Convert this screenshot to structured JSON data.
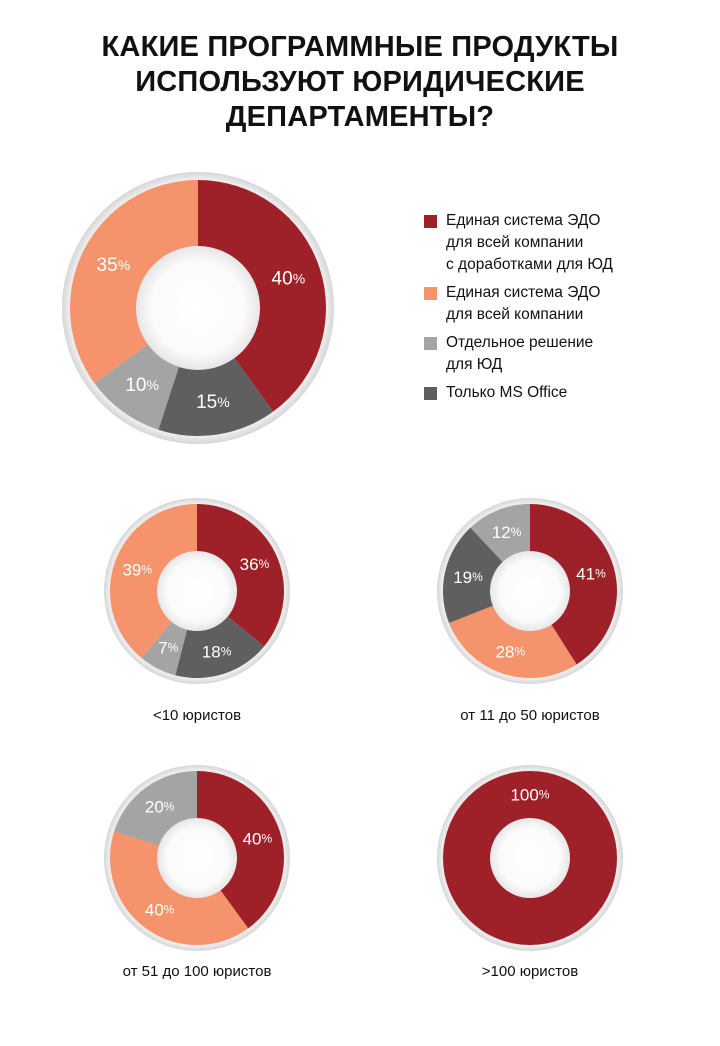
{
  "title": {
    "lines": [
      "КАКИЕ ПРОГРАММНЫЕ ПРОДУКТЫ",
      "ИСПОЛЬЗУЮТ ЮРИДИЧЕСКИЕ",
      "ДЕПАРТАМЕНТЫ?"
    ]
  },
  "colors": {
    "edo_custom": "#9e2129",
    "edo": "#f4936c",
    "separate": "#a4a4a4",
    "ms_office": "#5f5f5f"
  },
  "legend": [
    {
      "key": "edo_custom",
      "lines": [
        "Единая система ЭДО",
        "для всей компании",
        "с доработками для ЮД"
      ]
    },
    {
      "key": "edo",
      "lines": [
        "Единая система ЭДО",
        "для всей компании"
      ]
    },
    {
      "key": "separate",
      "lines": [
        "Отдельное решение",
        "для ЮД"
      ]
    },
    {
      "key": "ms_office",
      "lines": [
        "Только MS Office"
      ]
    }
  ],
  "chart_data": [
    {
      "type": "pie",
      "caption": "",
      "slices": [
        {
          "key": "edo_custom",
          "value": 40,
          "label": "40%"
        },
        {
          "key": "ms_office",
          "value": 15,
          "label": "15%"
        },
        {
          "key": "separate",
          "value": 10,
          "label": "10%"
        },
        {
          "key": "edo",
          "value": 35,
          "label": "35%"
        }
      ]
    },
    {
      "type": "pie",
      "caption": "<10 юристов",
      "slices": [
        {
          "key": "edo_custom",
          "value": 36,
          "label": "36%"
        },
        {
          "key": "ms_office",
          "value": 18,
          "label": "18%"
        },
        {
          "key": "separate",
          "value": 7,
          "label": "7%"
        },
        {
          "key": "edo",
          "value": 39,
          "label": "39%"
        }
      ]
    },
    {
      "type": "pie",
      "caption": "от 11 до 50 юристов",
      "slices": [
        {
          "key": "edo_custom",
          "value": 41,
          "label": "41%"
        },
        {
          "key": "edo",
          "value": 28,
          "label": "28%"
        },
        {
          "key": "ms_office",
          "value": 19,
          "label": "19%"
        },
        {
          "key": "separate",
          "value": 12,
          "label": "12%"
        }
      ]
    },
    {
      "type": "pie",
      "caption": "от 51 до 100 юристов",
      "slices": [
        {
          "key": "edo_custom",
          "value": 40,
          "label": "40%"
        },
        {
          "key": "edo",
          "value": 40,
          "label": "40%"
        },
        {
          "key": "separate",
          "value": 20,
          "label": "20%"
        }
      ]
    },
    {
      "type": "pie",
      "caption": ">100 юристов",
      "slices": [
        {
          "key": "edo_custom",
          "value": 100,
          "label": "100%"
        }
      ]
    }
  ]
}
